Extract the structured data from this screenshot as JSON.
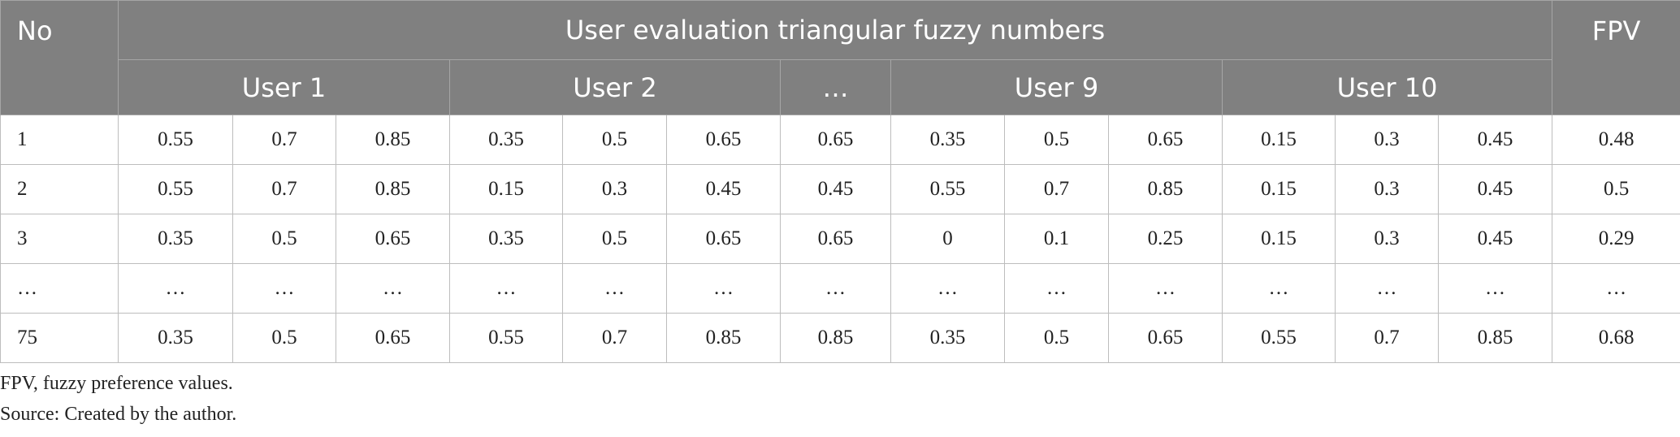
{
  "header": {
    "no": "No",
    "group": "User evaluation triangular fuzzy numbers",
    "users": [
      {
        "label": "User 1",
        "span": 3
      },
      {
        "label": "User 2",
        "span": 3
      },
      {
        "label": "…",
        "span": 1
      },
      {
        "label": "User 9",
        "span": 3
      },
      {
        "label": "User 10",
        "span": 3
      }
    ],
    "fpv": "FPV"
  },
  "table": {
    "rows": [
      [
        "1",
        "0.55",
        "0.7",
        "0.85",
        "0.35",
        "0.5",
        "0.65",
        "0.65",
        "0.35",
        "0.5",
        "0.65",
        "0.15",
        "0.3",
        "0.45",
        "0.48"
      ],
      [
        "2",
        "0.55",
        "0.7",
        "0.85",
        "0.15",
        "0.3",
        "0.45",
        "0.45",
        "0.55",
        "0.7",
        "0.85",
        "0.15",
        "0.3",
        "0.45",
        "0.5"
      ],
      [
        "3",
        "0.35",
        "0.5",
        "0.65",
        "0.35",
        "0.5",
        "0.65",
        "0.65",
        "0",
        "0.1",
        "0.25",
        "0.15",
        "0.3",
        "0.45",
        "0.29"
      ],
      [
        "…",
        "…",
        "…",
        "…",
        "…",
        "…",
        "…",
        "…",
        "…",
        "…",
        "…",
        "…",
        "…",
        "…",
        "…"
      ],
      [
        "75",
        "0.35",
        "0.5",
        "0.65",
        "0.55",
        "0.7",
        "0.85",
        "0.85",
        "0.35",
        "0.5",
        "0.65",
        "0.55",
        "0.7",
        "0.85",
        "0.68"
      ]
    ]
  },
  "footnotes": [
    "FPV, fuzzy preference values.",
    "Source: Created by the author."
  ]
}
